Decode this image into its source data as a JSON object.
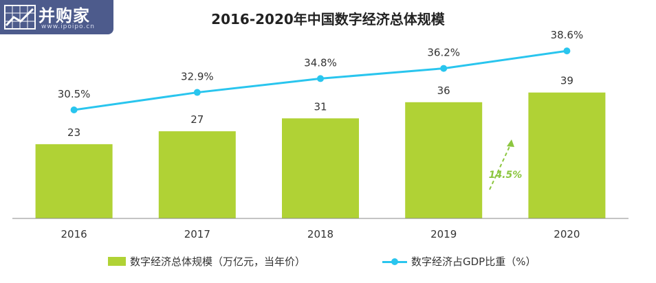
{
  "logo": {
    "text": "并购家",
    "subtext": "www.ipoipo.cn"
  },
  "title": "2016-2020年中国数字经济总体规模",
  "legend": {
    "bar": "数字经济总体规模（万亿元，当年价）",
    "line": "数字经济占GDP比重（%）"
  },
  "annotation": "14.5%",
  "colors": {
    "bar": "#b0d235",
    "line": "#29c5ee",
    "annotation": "#8cc63f",
    "logo_bg": "#4d5b8c"
  },
  "chart_data": {
    "type": "bar",
    "categories": [
      "2016",
      "2017",
      "2018",
      "2019",
      "2020"
    ],
    "series": [
      {
        "name": "数字经济总体规模（万亿元，当年价）",
        "type": "bar",
        "values": [
          23,
          27,
          31,
          36,
          39
        ],
        "labels": [
          "23",
          "27",
          "31",
          "36",
          "39"
        ]
      },
      {
        "name": "数字经济占GDP比重（%）",
        "type": "line",
        "values": [
          30.5,
          32.9,
          34.8,
          36.2,
          38.6
        ],
        "labels": [
          "30.5%",
          "32.9%",
          "34.8%",
          "36.2%",
          "38.6%"
        ]
      }
    ],
    "title": "2016-2020年中国数字经济总体规模",
    "legend_position": "bottom"
  }
}
